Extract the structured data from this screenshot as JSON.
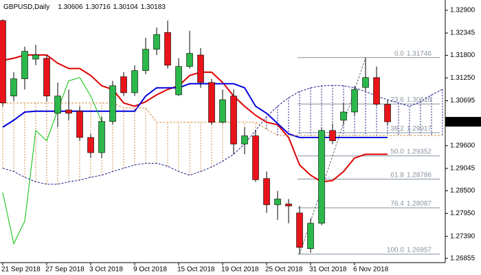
{
  "chart_data": {
    "type": "candlestick",
    "title": "GBPUSD,Daily",
    "categories": [
      "21 Sep 2018",
      null,
      null,
      null,
      "27 Sep 2018",
      null,
      null,
      null,
      "3 Oct 2018",
      null,
      null,
      null,
      "9 Oct 2018",
      null,
      null,
      null,
      "15 Oct 2018",
      null,
      null,
      null,
      "19 Oct 2018",
      null,
      null,
      null,
      "25 Oct 2018",
      null,
      null,
      null,
      "31 Oct 2018",
      null,
      null,
      null,
      "6 Nov 2018",
      null,
      null,
      null,
      null,
      null,
      null,
      null,
      null
    ],
    "open": [
      1.3265,
      1.3081,
      1.3123,
      1.3171,
      1.3173,
      1.3039,
      1.3047,
      1.3044,
      1.298,
      1.2943,
      1.3019,
      1.3128,
      1.3089,
      1.3143,
      1.3195,
      1.3236,
      1.3084,
      1.3153,
      1.3181,
      1.3114,
      1.3017,
      1.3081,
      1.2964,
      1.2984,
      1.288,
      1.2816,
      1.2818,
      1.2796,
      1.2709,
      1.2771,
      1.2997,
      1.3022,
      1.3042,
      1.3102,
      1.3126,
      1.30606,
      null,
      null,
      null,
      null,
      null
    ],
    "high": [
      1.3268,
      1.3139,
      1.3201,
      1.3206,
      1.3181,
      1.3114,
      1.3097,
      1.3056,
      1.2989,
      1.3031,
      1.3118,
      1.3139,
      1.3156,
      1.3223,
      1.3248,
      1.3265,
      1.3173,
      1.324,
      1.3198,
      1.3123,
      1.3097,
      1.3097,
      1.3005,
      1.2997,
      1.2897,
      1.285,
      1.283,
      1.2813,
      1.2783,
      1.3005,
      1.3014,
      1.3064,
      1.3106,
      1.3175,
      1.3153,
      1.30716,
      null,
      null,
      null,
      null,
      null
    ],
    "low": [
      1.3056,
      1.3068,
      1.3097,
      1.3156,
      1.3067,
      1.3005,
      1.3022,
      1.2972,
      1.293,
      1.293,
      1.3011,
      1.3081,
      1.3081,
      1.3134,
      1.3181,
      1.3148,
      1.3081,
      1.3148,
      1.3101,
      1.3011,
      1.3014,
      1.2939,
      1.2939,
      1.2872,
      1.2796,
      1.2779,
      1.2771,
      1.2696,
      1.2699,
      1.2766,
      1.2964,
      1.3011,
      1.3034,
      1.3094,
      1.3056,
      1.30104,
      null,
      null,
      null,
      null,
      null
    ],
    "close": [
      1.3064,
      1.3123,
      1.319,
      1.3181,
      1.3081,
      1.3081,
      1.3039,
      1.298,
      1.2943,
      1.3019,
      1.3106,
      1.3089,
      1.3143,
      1.3195,
      1.3231,
      1.3156,
      1.3153,
      1.3185,
      1.3114,
      1.3017,
      1.3072,
      1.2964,
      1.2984,
      1.2877,
      1.2816,
      1.283,
      1.2813,
      1.2712,
      1.2771,
      1.2997,
      1.2972,
      1.3042,
      1.3097,
      1.3126,
      1.3061,
      1.30183,
      null,
      null,
      null,
      null,
      null
    ],
    "up_color": "#2cb84b",
    "down_color": "#e8141a",
    "series": [
      {
        "color": "#e00000",
        "style": "solid",
        "values": [
          1.3168,
          1.3173,
          1.3181,
          1.3181,
          1.3181,
          1.3161,
          1.3148,
          1.3148,
          1.3131,
          1.3106,
          1.3097,
          1.3064,
          1.3056,
          1.3067,
          1.3084,
          1.3097,
          1.3106,
          1.3131,
          1.3139,
          1.3139,
          1.3114,
          1.3081,
          1.3056,
          1.3034,
          1.3017,
          1.3011,
          1.298,
          1.2913,
          1.2888,
          1.2872,
          1.2875,
          1.2897,
          1.293,
          1.2939,
          1.2939,
          1.2939,
          null,
          null,
          null,
          null,
          null
        ]
      },
      {
        "color": "#0000e0",
        "style": "solid",
        "values": [
          1.3005,
          1.3022,
          1.3042,
          1.3044,
          1.3044,
          1.3044,
          1.3044,
          1.3044,
          1.3044,
          1.3044,
          1.3044,
          1.3044,
          1.3044,
          1.3081,
          1.3101,
          1.3101,
          1.3101,
          1.3111,
          1.3111,
          1.3111,
          1.3111,
          1.3111,
          1.3101,
          1.3056,
          1.3039,
          1.3014,
          1.2989,
          1.298,
          1.298,
          1.298,
          1.298,
          1.298,
          1.298,
          1.298,
          1.298,
          1.298,
          null,
          null,
          null,
          null,
          null
        ]
      },
      {
        "color": "#00c000",
        "style": "thin",
        "values": [
          1.2846,
          1.2721,
          1.2776,
          1.2997,
          1.2972,
          1.3047,
          1.3118,
          1.3126,
          1.3081,
          1.3019,
          null,
          null,
          null,
          null,
          null,
          null,
          null,
          null,
          null,
          null,
          null,
          null,
          null,
          null,
          null,
          null,
          null,
          null,
          null,
          null,
          null,
          null,
          null,
          null,
          null,
          null,
          null,
          null,
          null,
          null,
          null
        ]
      },
      {
        "color": "#1a1a8c",
        "style": "cloud",
        "values": [
          1.2905,
          1.2897,
          1.2883,
          1.2872,
          1.2866,
          1.2866,
          1.2872,
          1.2876,
          1.2883,
          1.2888,
          1.2897,
          1.2905,
          1.2913,
          1.2917,
          1.2917,
          1.291,
          1.2897,
          1.2888,
          1.2897,
          1.2908,
          1.2922,
          1.2939,
          1.2964,
          1.2997,
          1.3031,
          1.3056,
          1.3077,
          1.3092,
          1.3101,
          1.3106,
          1.3107,
          1.3106,
          1.3101,
          1.3092,
          1.3081,
          1.3072,
          1.3064,
          1.3056,
          1.3067,
          1.3084,
          1.3097
        ]
      },
      {
        "color": "#d08a3c",
        "style": "cloud",
        "values": [
          1.3064,
          1.3064,
          1.3064,
          1.3064,
          1.3064,
          1.3064,
          1.3064,
          1.3064,
          1.3064,
          1.3064,
          1.3064,
          1.3052,
          1.3052,
          1.3052,
          1.3017,
          1.3017,
          1.3017,
          1.3017,
          1.3017,
          1.3017,
          1.3017,
          1.3017,
          1.3017,
          1.3017,
          1.3,
          1.2985,
          1.2985,
          1.2985,
          1.2985,
          1.2985,
          1.2985,
          1.2985,
          1.2985,
          1.2985,
          1.2985,
          1.2985,
          1.2985,
          1.2985,
          1.2985,
          1.2985,
          1.2985
        ]
      }
    ],
    "fib": {
      "color": "#8090a0",
      "levels": [
        {
          "value": 0,
          "label": "0.0"
        },
        23.6,
        38.2,
        {
          "value": 50,
          "label": "50.0"
        },
        61.8,
        76.4,
        {
          "value": 100,
          "label": "100.0"
        }
      ],
      "prices": [
        1.31746,
        1.30616,
        1.29917,
        1.29352,
        1.28786,
        1.28087,
        1.26957
      ]
    },
    "ylim": [
      1.2675,
      1.3315
    ],
    "yticks": [
      {
        "value": 1.329,
        "label": "1.32900"
      },
      {
        "value": 1.32345,
        "label": "1.32345"
      },
      {
        "value": 1.318,
        "label": "1.31800"
      },
      {
        "value": 1.3125,
        "label": "1.31250"
      },
      {
        "value": 1.30695,
        "label": "1.30695"
      },
      {
        "value": 1.296,
        "label": "1.29600"
      },
      {
        "value": 1.29045,
        "label": "1.29045"
      },
      {
        "value": 1.285,
        "label": "1.28500"
      },
      {
        "value": 1.2795,
        "label": "1.27950"
      },
      {
        "value": 1.2739,
        "label": "1.27390"
      },
      {
        "value": 1.26855,
        "label": "1.26855"
      }
    ],
    "grid": false
  }
}
